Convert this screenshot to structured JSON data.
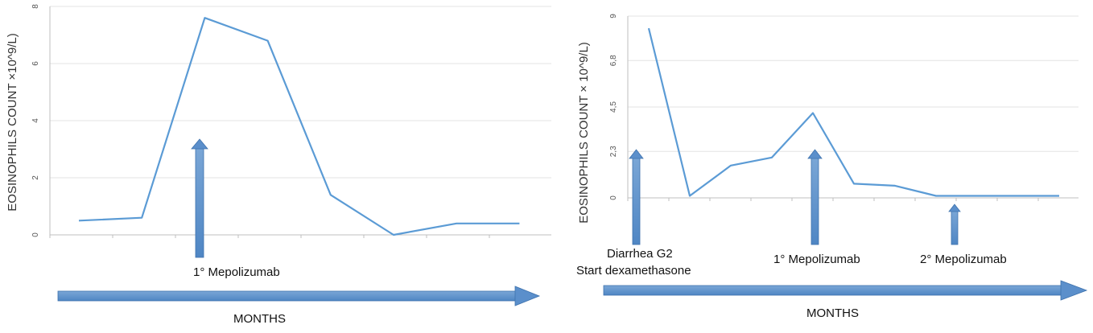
{
  "chart_data": [
    {
      "type": "line",
      "ylabel": "EOSINOPHILS COUNT  ×10^9/L)",
      "xlabel": "MONTHS",
      "ylim": [
        0,
        8
      ],
      "yticks": [
        "0",
        "2",
        "4",
        "6",
        "8"
      ],
      "grid": true,
      "x": [
        1,
        2,
        3,
        4,
        5,
        6,
        7,
        8
      ],
      "values": [
        0.5,
        0.6,
        7.6,
        6.8,
        1.4,
        0.0,
        0.4,
        0.4
      ],
      "color": "#5b9bd5",
      "annotations": [
        {
          "label": "1° Mepolizumab",
          "x": 3
        }
      ]
    },
    {
      "type": "line",
      "ylabel": "EOSINOPHILS COUNT  × 10^9/L)",
      "xlabel": "MONTHS",
      "ylim": [
        0,
        9
      ],
      "yticks": [
        "0",
        "2,3",
        "4,5",
        "6,8",
        "9"
      ],
      "grid": true,
      "x": [
        1,
        2,
        3,
        4,
        5,
        6,
        7,
        8,
        9,
        10,
        11
      ],
      "values": [
        8.4,
        0.1,
        1.6,
        2.0,
        4.2,
        0.7,
        0.6,
        0.1,
        0.1,
        0.1,
        0.1
      ],
      "color": "#5b9bd5",
      "annotations": [
        {
          "label": "Diarrhea G2",
          "label2": "Start dexamethasone",
          "x": 0.5
        },
        {
          "label": "1° Mepolizumab",
          "x": 5
        },
        {
          "label": "2° Mepolizumab",
          "x": 8
        }
      ]
    }
  ]
}
